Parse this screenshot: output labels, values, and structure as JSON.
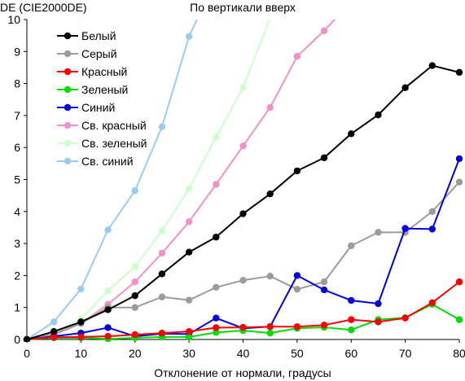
{
  "chart_data": {
    "type": "line",
    "title": "По вертикали вверх",
    "ylabel": "DE (CIE2000DE)",
    "xlabel": "Отклонение от нормали, градусы",
    "xlim": [
      0,
      80
    ],
    "ylim": [
      0,
      10
    ],
    "xticks": [
      0,
      10,
      20,
      30,
      40,
      50,
      60,
      70,
      80
    ],
    "yticks": [
      0,
      1,
      2,
      3,
      4,
      5,
      6,
      7,
      8,
      9,
      10
    ],
    "grid": false,
    "legend_position": "top-left",
    "series": [
      {
        "name": "Белый",
        "color": "#000000",
        "x": [
          0,
          5,
          10,
          15,
          20,
          25,
          30,
          35,
          40,
          45,
          50,
          55,
          60,
          65,
          70,
          75,
          80
        ],
        "y": [
          0,
          0.25,
          0.55,
          0.93,
          1.37,
          2.05,
          2.73,
          3.2,
          3.93,
          4.55,
          5.27,
          5.68,
          6.43,
          7.02,
          7.87,
          8.56,
          8.35
        ]
      },
      {
        "name": "Серый",
        "color": "#9b9b9b",
        "x": [
          0,
          5,
          10,
          15,
          20,
          25,
          30,
          35,
          40,
          45,
          50,
          55,
          60,
          65,
          70,
          75,
          80
        ],
        "y": [
          0,
          0.15,
          0.5,
          1.0,
          1.0,
          1.33,
          1.23,
          1.63,
          1.85,
          1.98,
          1.57,
          1.8,
          2.93,
          3.35,
          3.35,
          4.0,
          4.92
        ]
      },
      {
        "name": "Красный",
        "color": "#ff0000",
        "x": [
          0,
          5,
          10,
          15,
          20,
          25,
          30,
          35,
          40,
          45,
          50,
          55,
          60,
          65,
          70,
          75,
          80
        ],
        "y": [
          0,
          0.07,
          0.08,
          0.1,
          0.15,
          0.2,
          0.25,
          0.37,
          0.38,
          0.4,
          0.4,
          0.45,
          0.62,
          0.55,
          0.67,
          1.15,
          1.8
        ]
      },
      {
        "name": "Зеленый",
        "color": "#00dd00",
        "x": [
          0,
          5,
          10,
          15,
          20,
          25,
          30,
          35,
          40,
          45,
          50,
          55,
          60,
          65,
          70,
          75,
          80
        ],
        "y": [
          0,
          0.05,
          0.05,
          0.02,
          0.05,
          0.08,
          0.08,
          0.22,
          0.28,
          0.2,
          0.35,
          0.38,
          0.3,
          0.62,
          0.68,
          1.1,
          0.62
        ]
      },
      {
        "name": "Синий",
        "color": "#0000dd",
        "x": [
          0,
          5,
          10,
          15,
          20,
          25,
          30,
          35,
          40,
          45,
          50,
          55,
          60,
          65,
          70,
          75,
          80
        ],
        "y": [
          0,
          0.1,
          0.2,
          0.37,
          0.1,
          0.18,
          0.17,
          0.67,
          0.35,
          0.4,
          2.0,
          1.55,
          1.22,
          1.12,
          3.47,
          3.45,
          5.65
        ]
      },
      {
        "name": "Св. красный",
        "color": "#f490c8",
        "x": [
          0,
          5,
          10,
          15,
          20,
          25,
          30,
          35,
          40,
          45,
          50,
          55,
          58
        ],
        "y": [
          0,
          0.18,
          0.5,
          1.1,
          1.8,
          2.7,
          3.68,
          4.85,
          6.05,
          7.25,
          8.85,
          9.65,
          10.2
        ]
      },
      {
        "name": "Св. зеленый",
        "color": "#ccffcc",
        "x": [
          0,
          5,
          10,
          15,
          20,
          25,
          30,
          35,
          40,
          45
        ],
        "y": [
          0,
          0.2,
          0.65,
          1.52,
          2.28,
          3.4,
          4.72,
          6.33,
          7.88,
          10.05
        ]
      },
      {
        "name": "Св. синий",
        "color": "#99ccee",
        "x": [
          0,
          5,
          10,
          15,
          20,
          25,
          30,
          32
        ],
        "y": [
          0,
          0.55,
          1.58,
          3.43,
          4.65,
          6.65,
          9.47,
          10.2
        ]
      }
    ]
  }
}
